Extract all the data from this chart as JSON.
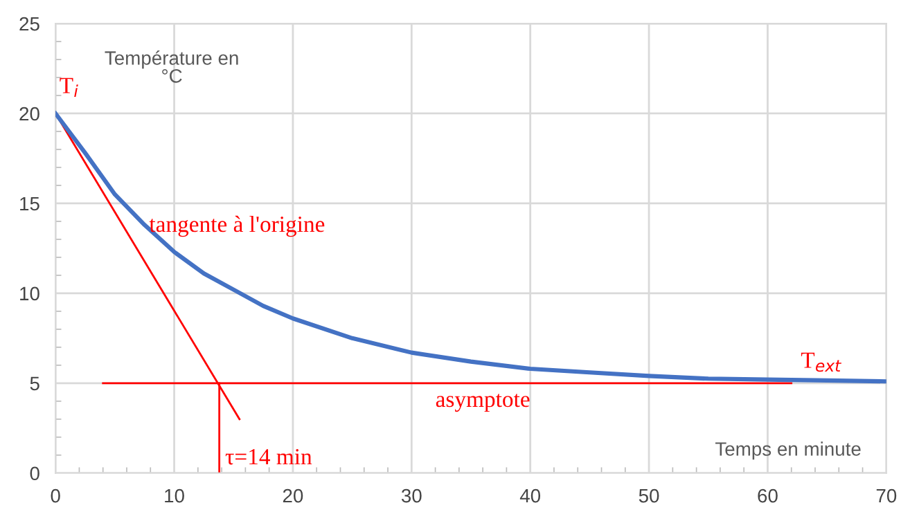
{
  "chart_data": {
    "type": "line",
    "xlabel": "Temps en minute",
    "ylabel": "Température en\n°C",
    "xlim": [
      0,
      70
    ],
    "ylim": [
      0,
      25
    ],
    "xticks": [
      0,
      10,
      20,
      30,
      40,
      50,
      60,
      70
    ],
    "yticks": [
      0,
      5,
      10,
      15,
      20,
      25
    ],
    "grid": true,
    "marker": "none",
    "line_style": "solid",
    "series": [
      {
        "color": "#4472c4",
        "x": [
          0,
          2.5,
          5,
          7.5,
          10,
          12.5,
          15,
          17.5,
          20,
          25,
          30,
          35,
          40,
          45,
          50,
          55,
          60,
          65,
          70
        ],
        "values": [
          20,
          17.8,
          15.5,
          13.8,
          12.3,
          11.1,
          10.2,
          9.3,
          8.6,
          7.5,
          6.7,
          6.2,
          5.8,
          5.6,
          5.4,
          5.25,
          5.2,
          5.15,
          5.1
        ]
      },
      {
        "color": "#ff0000",
        "x": [
          0,
          15.5
        ],
        "values": [
          20,
          3
        ]
      },
      {
        "color": "#ff0000",
        "x": [
          4,
          62
        ],
        "values": [
          5,
          5
        ]
      },
      {
        "color": "#ff0000",
        "x": [
          13.8,
          13.8
        ],
        "values": [
          0,
          5
        ]
      }
    ],
    "annotations": [
      {
        "text": "T$_{i}$",
        "x": 0,
        "y": 20
      },
      {
        "text": "tangente à l'origine",
        "x": 8.7,
        "y": 12.5
      },
      {
        "text": "asymptote",
        "x": 36,
        "y": 5
      },
      {
        "text": "T$_{ext}$",
        "x": 65,
        "y": 5.15
      },
      {
        "text": "τ=14 min",
        "x": 13.8,
        "y": 0
      }
    ]
  }
}
